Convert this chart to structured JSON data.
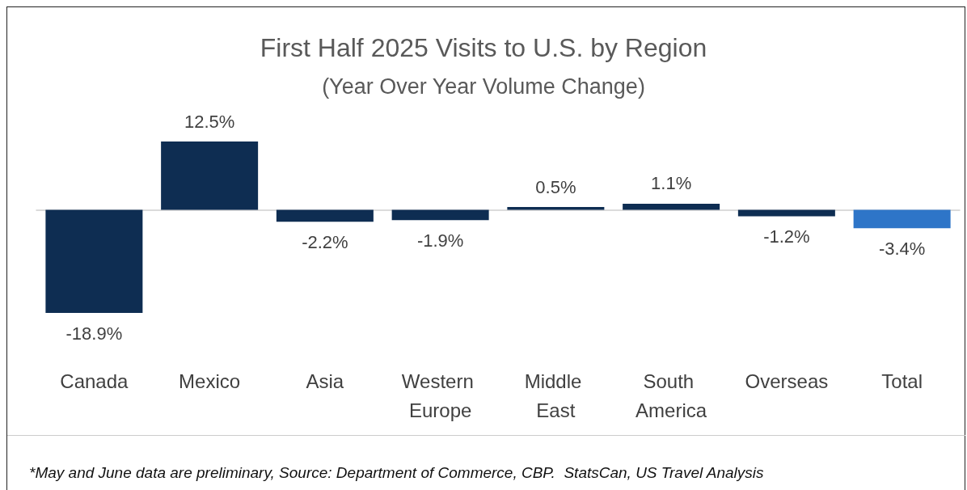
{
  "chart_data": {
    "type": "bar",
    "title": "First Half 2025 Visits to U.S. by Region",
    "subtitle": "(Year Over Year Volume Change)",
    "categories": [
      "Canada",
      "Mexico",
      "Asia",
      "Western Europe",
      "Middle East",
      "South America",
      "Overseas",
      "Total"
    ],
    "values": [
      -18.9,
      12.5,
      -2.2,
      -1.9,
      0.5,
      1.1,
      -1.2,
      -3.4
    ],
    "colors": [
      "#0e2d52",
      "#0e2d52",
      "#0e2d52",
      "#0e2d52",
      "#0e2d52",
      "#0e2d52",
      "#0e2d52",
      "#2e75c8"
    ],
    "value_labels": [
      "-18.9%",
      "12.5%",
      "-2.2%",
      "-1.9%",
      "0.5%",
      "1.1%",
      "-1.2%",
      "-3.4%"
    ],
    "annotations": [
      "*May and June data are preliminary, Source: Department of Commerce, CBP.  StatsCan, US Travel Analysis"
    ]
  }
}
